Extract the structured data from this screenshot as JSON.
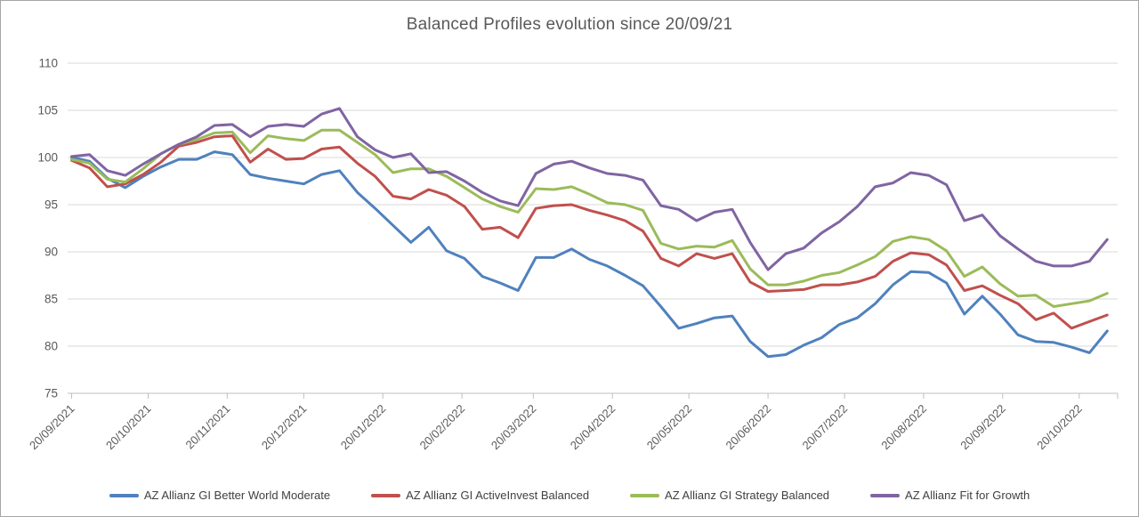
{
  "chart_data": {
    "type": "line",
    "title": "Balanced Profiles evolution since 20/09/21",
    "xlabel": "",
    "ylabel": "",
    "ylim": [
      75,
      110
    ],
    "y_ticks": [
      110,
      105,
      100,
      95,
      90,
      85,
      80,
      75
    ],
    "grid": "horizontal",
    "legend_position": "bottom",
    "x_tick_labels": [
      "20/09/2021",
      "20/10/2021",
      "20/11/2021",
      "20/12/2021",
      "20/01/2022",
      "20/02/2022",
      "20/03/2022",
      "20/04/2022",
      "20/05/2022",
      "20/06/2022",
      "20/07/2022",
      "20/08/2022",
      "20/09/2022",
      "20/10/2022"
    ],
    "x_tick_days": [
      0,
      30,
      61,
      91,
      122,
      153,
      181,
      212,
      242,
      273,
      303,
      334,
      365,
      395
    ],
    "sample_interval_days": 7,
    "series": [
      {
        "name": "AZ Allianz GI Better World Moderate",
        "color": "#4F81BD",
        "values": [
          100.0,
          99.6,
          97.8,
          96.8,
          98.0,
          99.0,
          99.8,
          99.8,
          100.6,
          100.3,
          98.2,
          97.8,
          97.5,
          97.2,
          98.2,
          98.6,
          96.3,
          94.6,
          92.8,
          91.0,
          92.6,
          90.1,
          89.3,
          87.4,
          86.7,
          85.9,
          89.4,
          89.4,
          90.3,
          89.2,
          88.5,
          87.5,
          86.4,
          84.2,
          81.9,
          82.4,
          83.0,
          83.2,
          80.5,
          78.9,
          79.1,
          80.1,
          80.9,
          82.3,
          83.0,
          84.5,
          86.5,
          87.9,
          87.8,
          86.7,
          83.4,
          85.3,
          83.4,
          81.2,
          80.5,
          80.4,
          79.9,
          79.3,
          81.6
        ]
      },
      {
        "name": "AZ Allianz GI ActiveInvest Balanced",
        "color": "#C0504D",
        "values": [
          99.7,
          98.9,
          96.9,
          97.2,
          98.2,
          99.5,
          101.2,
          101.6,
          102.2,
          102.3,
          99.5,
          100.9,
          99.8,
          99.9,
          100.9,
          101.1,
          99.4,
          98.0,
          95.9,
          95.6,
          96.6,
          96.0,
          94.8,
          92.4,
          92.6,
          91.5,
          94.6,
          94.9,
          95.0,
          94.4,
          93.9,
          93.3,
          92.2,
          89.3,
          88.5,
          89.8,
          89.3,
          89.8,
          86.8,
          85.8,
          85.9,
          86.0,
          86.5,
          86.5,
          86.8,
          87.4,
          89.0,
          89.9,
          89.7,
          88.6,
          85.9,
          86.4,
          85.4,
          84.5,
          82.8,
          83.5,
          81.9,
          82.6,
          83.3
        ]
      },
      {
        "name": "AZ Allianz GI Strategy Balanced",
        "color": "#9BBB59",
        "values": [
          99.8,
          99.4,
          97.7,
          97.4,
          98.8,
          100.4,
          101.4,
          101.9,
          102.6,
          102.7,
          100.5,
          102.3,
          102.0,
          101.8,
          102.9,
          102.9,
          101.6,
          100.3,
          98.4,
          98.8,
          98.8,
          98.0,
          96.8,
          95.6,
          94.8,
          94.2,
          96.7,
          96.6,
          96.9,
          96.1,
          95.2,
          95.0,
          94.4,
          90.9,
          90.3,
          90.6,
          90.5,
          91.2,
          88.2,
          86.5,
          86.5,
          86.9,
          87.5,
          87.8,
          88.6,
          89.5,
          91.1,
          91.6,
          91.3,
          90.1,
          87.4,
          88.4,
          86.6,
          85.3,
          85.4,
          84.2,
          84.5,
          84.8,
          85.6
        ]
      },
      {
        "name": "AZ Allianz Fit for Growth",
        "color": "#8064A2",
        "values": [
          100.1,
          100.3,
          98.6,
          98.1,
          99.3,
          100.4,
          101.4,
          102.2,
          103.4,
          103.5,
          102.2,
          103.3,
          103.5,
          103.3,
          104.6,
          105.2,
          102.2,
          100.8,
          100.0,
          100.4,
          98.4,
          98.5,
          97.5,
          96.3,
          95.4,
          94.9,
          98.3,
          99.3,
          99.6,
          98.9,
          98.3,
          98.1,
          97.6,
          94.9,
          94.5,
          93.3,
          94.2,
          94.5,
          91.0,
          88.1,
          89.8,
          90.4,
          92.0,
          93.2,
          94.8,
          96.9,
          97.3,
          98.4,
          98.1,
          97.1,
          93.3,
          93.9,
          91.7,
          90.3,
          89.0,
          88.5,
          88.5,
          89.0,
          91.3
        ]
      }
    ]
  },
  "colors": {
    "grid": "#D9D9D9",
    "axis_line": "#BFBFBF",
    "axis_text": "#595959",
    "title_text": "#595959",
    "legend_text": "#404040",
    "background": "#FFFFFF",
    "frame_border": "#A6A6A6"
  }
}
